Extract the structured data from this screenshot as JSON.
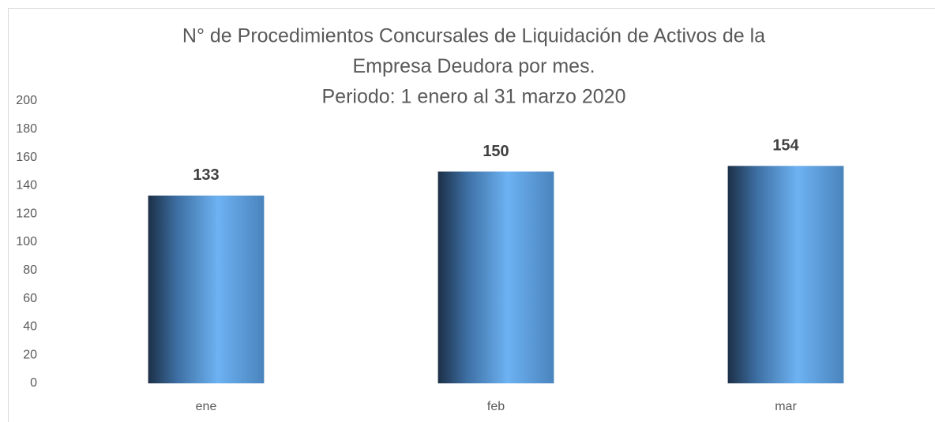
{
  "chart_data": {
    "type": "bar",
    "title": [
      "N° de Procedimientos Concursales de Liquidación de Activos de la",
      "Empresa Deudora por mes.",
      "Periodo: 1 enero al 31 marzo 2020"
    ],
    "categories": [
      "ene",
      "feb",
      "mar"
    ],
    "values": [
      133,
      150,
      154
    ],
    "color": "#6cb0f0",
    "ylim": [
      0,
      200
    ],
    "yticks": [
      0,
      20,
      40,
      60,
      80,
      100,
      120,
      140,
      160,
      180,
      200
    ],
    "grid": false
  }
}
